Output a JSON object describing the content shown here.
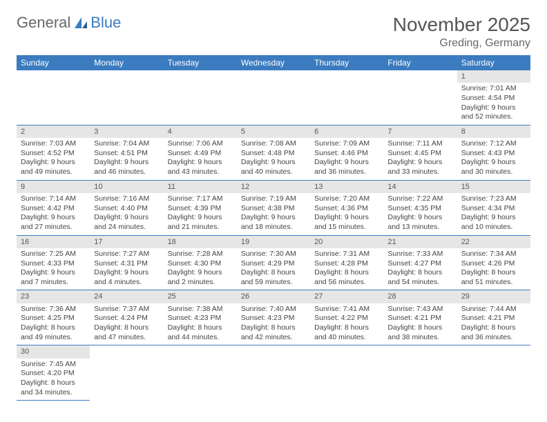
{
  "logo": {
    "general": "General",
    "blue": "Blue"
  },
  "title": "November 2025",
  "subtitle": "Greding, Germany",
  "colors": {
    "header_bg": "#3b7bbf",
    "header_fg": "#ffffff",
    "daynum_bg": "#e6e6e6",
    "rule": "#3b7bbf",
    "text": "#444"
  },
  "weekdays": [
    "Sunday",
    "Monday",
    "Tuesday",
    "Wednesday",
    "Thursday",
    "Friday",
    "Saturday"
  ],
  "weeks": [
    [
      null,
      null,
      null,
      null,
      null,
      null,
      {
        "n": "1",
        "sunrise": "7:01 AM",
        "sunset": "4:54 PM",
        "day_h": "9",
        "day_m": "52"
      }
    ],
    [
      {
        "n": "2",
        "sunrise": "7:03 AM",
        "sunset": "4:52 PM",
        "day_h": "9",
        "day_m": "49"
      },
      {
        "n": "3",
        "sunrise": "7:04 AM",
        "sunset": "4:51 PM",
        "day_h": "9",
        "day_m": "46"
      },
      {
        "n": "4",
        "sunrise": "7:06 AM",
        "sunset": "4:49 PM",
        "day_h": "9",
        "day_m": "43"
      },
      {
        "n": "5",
        "sunrise": "7:08 AM",
        "sunset": "4:48 PM",
        "day_h": "9",
        "day_m": "40"
      },
      {
        "n": "6",
        "sunrise": "7:09 AM",
        "sunset": "4:46 PM",
        "day_h": "9",
        "day_m": "36"
      },
      {
        "n": "7",
        "sunrise": "7:11 AM",
        "sunset": "4:45 PM",
        "day_h": "9",
        "day_m": "33"
      },
      {
        "n": "8",
        "sunrise": "7:12 AM",
        "sunset": "4:43 PM",
        "day_h": "9",
        "day_m": "30"
      }
    ],
    [
      {
        "n": "9",
        "sunrise": "7:14 AM",
        "sunset": "4:42 PM",
        "day_h": "9",
        "day_m": "27"
      },
      {
        "n": "10",
        "sunrise": "7:16 AM",
        "sunset": "4:40 PM",
        "day_h": "9",
        "day_m": "24"
      },
      {
        "n": "11",
        "sunrise": "7:17 AM",
        "sunset": "4:39 PM",
        "day_h": "9",
        "day_m": "21"
      },
      {
        "n": "12",
        "sunrise": "7:19 AM",
        "sunset": "4:38 PM",
        "day_h": "9",
        "day_m": "18"
      },
      {
        "n": "13",
        "sunrise": "7:20 AM",
        "sunset": "4:36 PM",
        "day_h": "9",
        "day_m": "15"
      },
      {
        "n": "14",
        "sunrise": "7:22 AM",
        "sunset": "4:35 PM",
        "day_h": "9",
        "day_m": "13"
      },
      {
        "n": "15",
        "sunrise": "7:23 AM",
        "sunset": "4:34 PM",
        "day_h": "9",
        "day_m": "10"
      }
    ],
    [
      {
        "n": "16",
        "sunrise": "7:25 AM",
        "sunset": "4:33 PM",
        "day_h": "9",
        "day_m": "7"
      },
      {
        "n": "17",
        "sunrise": "7:27 AM",
        "sunset": "4:31 PM",
        "day_h": "9",
        "day_m": "4"
      },
      {
        "n": "18",
        "sunrise": "7:28 AM",
        "sunset": "4:30 PM",
        "day_h": "9",
        "day_m": "2"
      },
      {
        "n": "19",
        "sunrise": "7:30 AM",
        "sunset": "4:29 PM",
        "day_h": "8",
        "day_m": "59"
      },
      {
        "n": "20",
        "sunrise": "7:31 AM",
        "sunset": "4:28 PM",
        "day_h": "8",
        "day_m": "56"
      },
      {
        "n": "21",
        "sunrise": "7:33 AM",
        "sunset": "4:27 PM",
        "day_h": "8",
        "day_m": "54"
      },
      {
        "n": "22",
        "sunrise": "7:34 AM",
        "sunset": "4:26 PM",
        "day_h": "8",
        "day_m": "51"
      }
    ],
    [
      {
        "n": "23",
        "sunrise": "7:36 AM",
        "sunset": "4:25 PM",
        "day_h": "8",
        "day_m": "49"
      },
      {
        "n": "24",
        "sunrise": "7:37 AM",
        "sunset": "4:24 PM",
        "day_h": "8",
        "day_m": "47"
      },
      {
        "n": "25",
        "sunrise": "7:38 AM",
        "sunset": "4:23 PM",
        "day_h": "8",
        "day_m": "44"
      },
      {
        "n": "26",
        "sunrise": "7:40 AM",
        "sunset": "4:23 PM",
        "day_h": "8",
        "day_m": "42"
      },
      {
        "n": "27",
        "sunrise": "7:41 AM",
        "sunset": "4:22 PM",
        "day_h": "8",
        "day_m": "40"
      },
      {
        "n": "28",
        "sunrise": "7:43 AM",
        "sunset": "4:21 PM",
        "day_h": "8",
        "day_m": "38"
      },
      {
        "n": "29",
        "sunrise": "7:44 AM",
        "sunset": "4:21 PM",
        "day_h": "8",
        "day_m": "36"
      }
    ],
    [
      {
        "n": "30",
        "sunrise": "7:45 AM",
        "sunset": "4:20 PM",
        "day_h": "8",
        "day_m": "34"
      },
      null,
      null,
      null,
      null,
      null,
      null
    ]
  ],
  "labels": {
    "sunrise": "Sunrise:",
    "sunset": "Sunset:",
    "daylight": "Daylight:",
    "hours": "hours",
    "and": "and",
    "minutes": "minutes."
  }
}
